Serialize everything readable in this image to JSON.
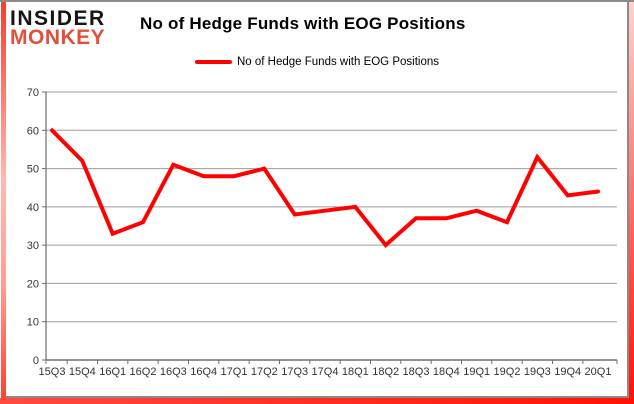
{
  "brand": {
    "line1": "INSIDER",
    "line2": "MONKEY",
    "line1_color": "#151515",
    "line2_color": "#e2503c"
  },
  "header": {
    "title": "No of Hedge Funds with EOG Positions"
  },
  "legend": {
    "label": "No of Hedge Funds with EOG Positions",
    "line_color": "#ff0000"
  },
  "chart_data": {
    "type": "line",
    "title": "No of Hedge Funds with EOG Positions",
    "series_name": "No of Hedge Funds with EOG Positions",
    "categories": [
      "15Q3",
      "15Q4",
      "16Q1",
      "16Q2",
      "16Q3",
      "16Q4",
      "17Q1",
      "17Q2",
      "17Q3",
      "17Q4",
      "18Q1",
      "18Q2",
      "18Q3",
      "18Q4",
      "19Q1",
      "19Q2",
      "19Q3",
      "19Q4",
      "20Q1"
    ],
    "values": [
      60,
      52,
      33,
      36,
      51,
      48,
      48,
      50,
      38,
      39,
      40,
      30,
      37,
      37,
      39,
      36,
      53,
      43,
      44
    ],
    "xlabel": "",
    "ylabel": "",
    "ylim": [
      0,
      70
    ],
    "yticks": [
      0,
      10,
      20,
      30,
      40,
      50,
      60,
      70
    ],
    "grid": true,
    "legend_position": "top",
    "line_color": "#ff0000",
    "line_width": 4,
    "gridline_color": "#9b9b9b",
    "axis_color": "#6e6e6e",
    "tick_label_color": "#333333",
    "tick_label_size": 11
  },
  "frame": {
    "red": "#ff1205",
    "gray": "#8a8a8a"
  }
}
